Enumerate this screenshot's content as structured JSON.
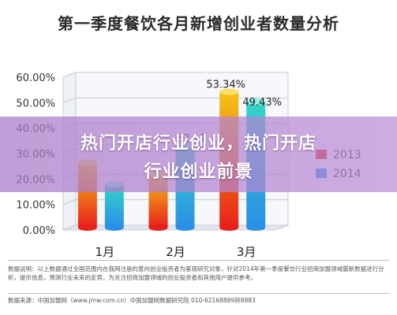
{
  "title": "第一季度餐饮各月新增创业者数量分析",
  "chart_data": {
    "type": "bar",
    "categories": [
      "1月",
      "2月",
      "3月"
    ],
    "series": [
      {
        "name": "2013",
        "values": [
          25.5,
          21.0,
          53.34
        ]
      },
      {
        "name": "2014",
        "values": [
          17.0,
          32.11,
          49.43
        ]
      }
    ],
    "data_labels": [
      "",
      "32.11",
      "53.34%",
      "49.43%"
    ],
    "y_ticks": [
      "0.00%",
      "10.00%",
      "20.00%",
      "30.00%",
      "40.00%",
      "50.00%",
      "60.00%"
    ],
    "ylim": [
      0,
      60
    ],
    "legend_position": "right",
    "colors": {
      "2013_top": "#f5c518",
      "2013_bottom": "#e8201a",
      "2014_top": "#34d6c8",
      "2014_bottom": "#2a8fe6"
    }
  },
  "notes": {
    "line1": "数据说明：以上数据通过全国范围内在我网注册的意向创业投资者为客观研究对象，针对2014年第一季度餐饮行业招商加盟领域最新数据进行分析，提示信息，预测行业未来的走势，为关注招商加盟领域的创业投资者和其他用户提供参考。",
    "line2": "数据来源：中国加盟网（www.jmw.com.cn）中国加盟网数据研究院 010-62168889转8883"
  },
  "overlay": {
    "line1": "热门开店行业创业，热门开店",
    "line2": "行业创业前景"
  }
}
